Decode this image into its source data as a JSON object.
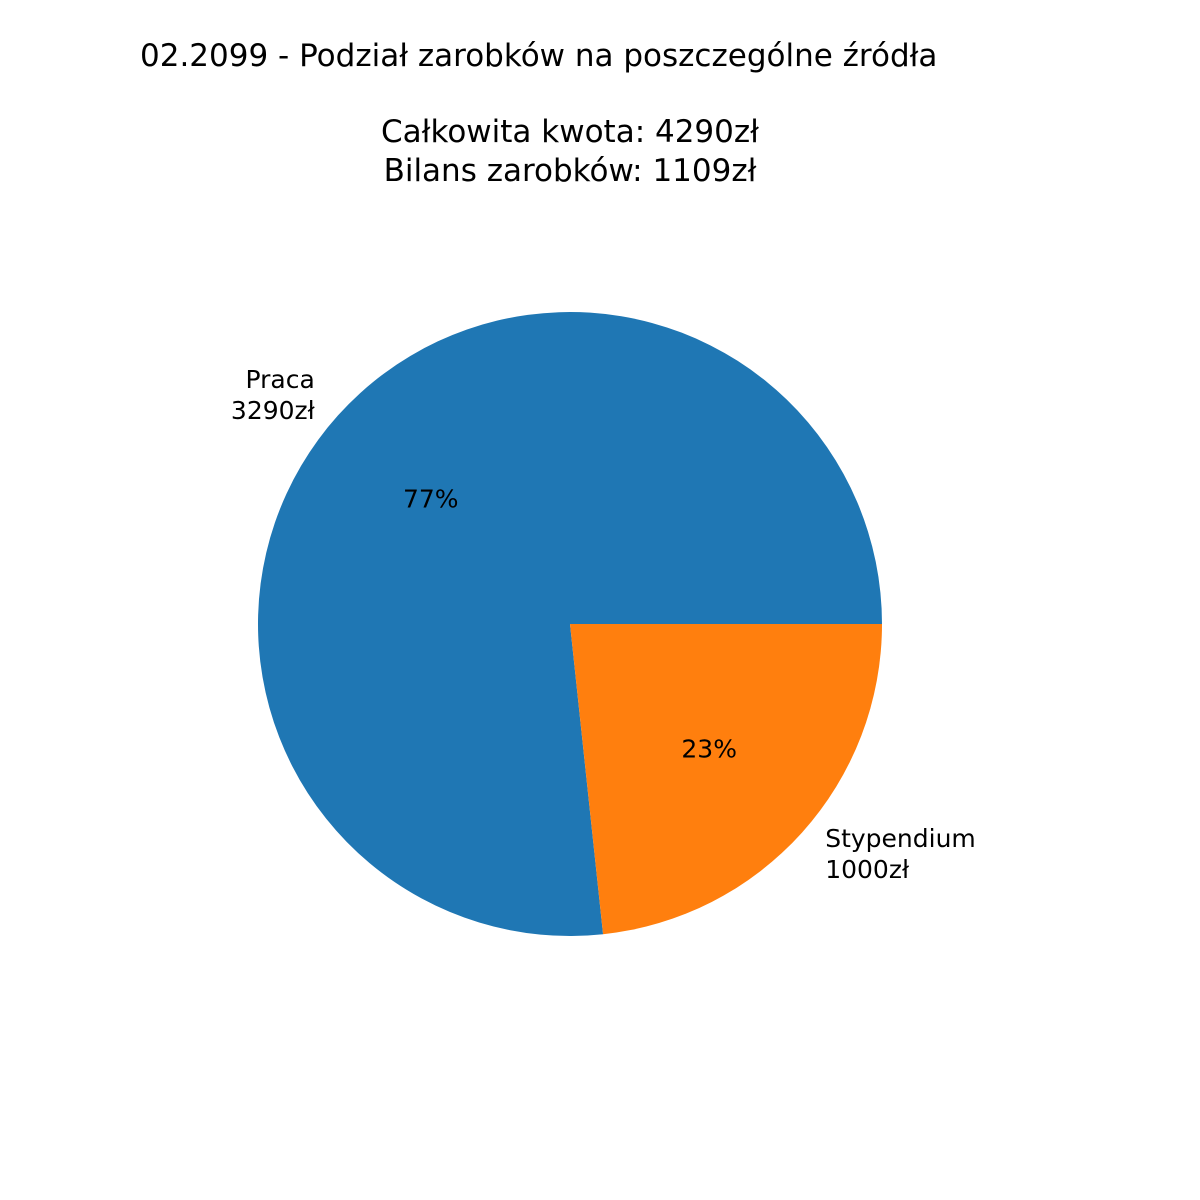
{
  "chart_data": {
    "type": "pie",
    "title_lines": [
      "02.2099 - Podział zarobków na poszczególne źródła",
      "",
      "Całkowita kwota: 4290zł",
      "Bilans zarobków: 1109zł"
    ],
    "slices": [
      {
        "label": "Praca",
        "value": 3290,
        "value_text": "3290zł",
        "percent_text": "77%",
        "color": "#1f77b4"
      },
      {
        "label": "Stypendium",
        "value": 1000,
        "value_text": "1000zł",
        "percent_text": "23%",
        "color": "#ff7f0e"
      }
    ],
    "start_angle_deg": 0,
    "direction": "counterclockwise",
    "legend": "none",
    "grid": false
  }
}
